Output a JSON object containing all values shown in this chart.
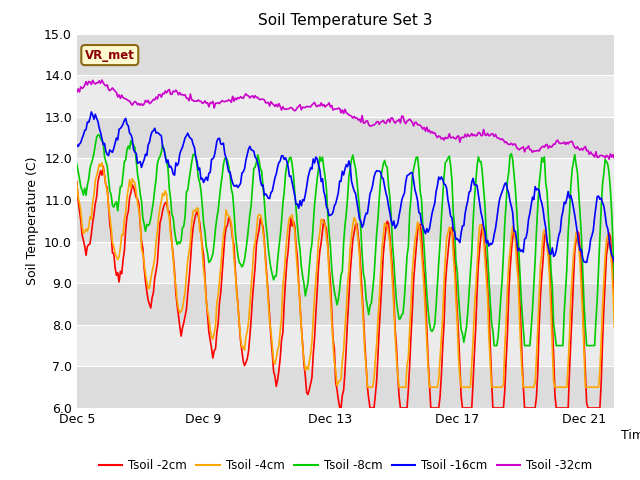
{
  "title": "Soil Temperature Set 3",
  "ylabel": "Soil Temperature (C)",
  "xlabel": "Time",
  "ylim": [
    6.0,
    15.0
  ],
  "yticks": [
    6.0,
    7.0,
    8.0,
    9.0,
    10.0,
    11.0,
    12.0,
    13.0,
    14.0,
    15.0
  ],
  "xtick_labels": [
    "Dec 5",
    "Dec 9",
    "Dec 13",
    "Dec 17",
    "Dec 21"
  ],
  "xtick_positions": [
    0,
    96,
    192,
    288,
    384
  ],
  "n_points": 408,
  "pts_per_day": 24,
  "line_colors": {
    "2cm": "#FF0000",
    "4cm": "#FFA500",
    "8cm": "#00CC00",
    "16cm": "#0000FF",
    "32cm": "#CC00CC"
  },
  "legend_labels": [
    "Tsoil -2cm",
    "Tsoil -4cm",
    "Tsoil -8cm",
    "Tsoil -16cm",
    "Tsoil -32cm"
  ],
  "vrmet_label": "VR_met",
  "bg_bands": [
    [
      6.0,
      7.0
    ],
    [
      8.0,
      9.0
    ],
    [
      10.0,
      11.0
    ],
    [
      12.0,
      13.0
    ],
    [
      14.0,
      15.0
    ]
  ],
  "band_color": "#DCDCDC",
  "plot_bg": "#EBEBEB",
  "white_band_color": "#F5F5F5"
}
